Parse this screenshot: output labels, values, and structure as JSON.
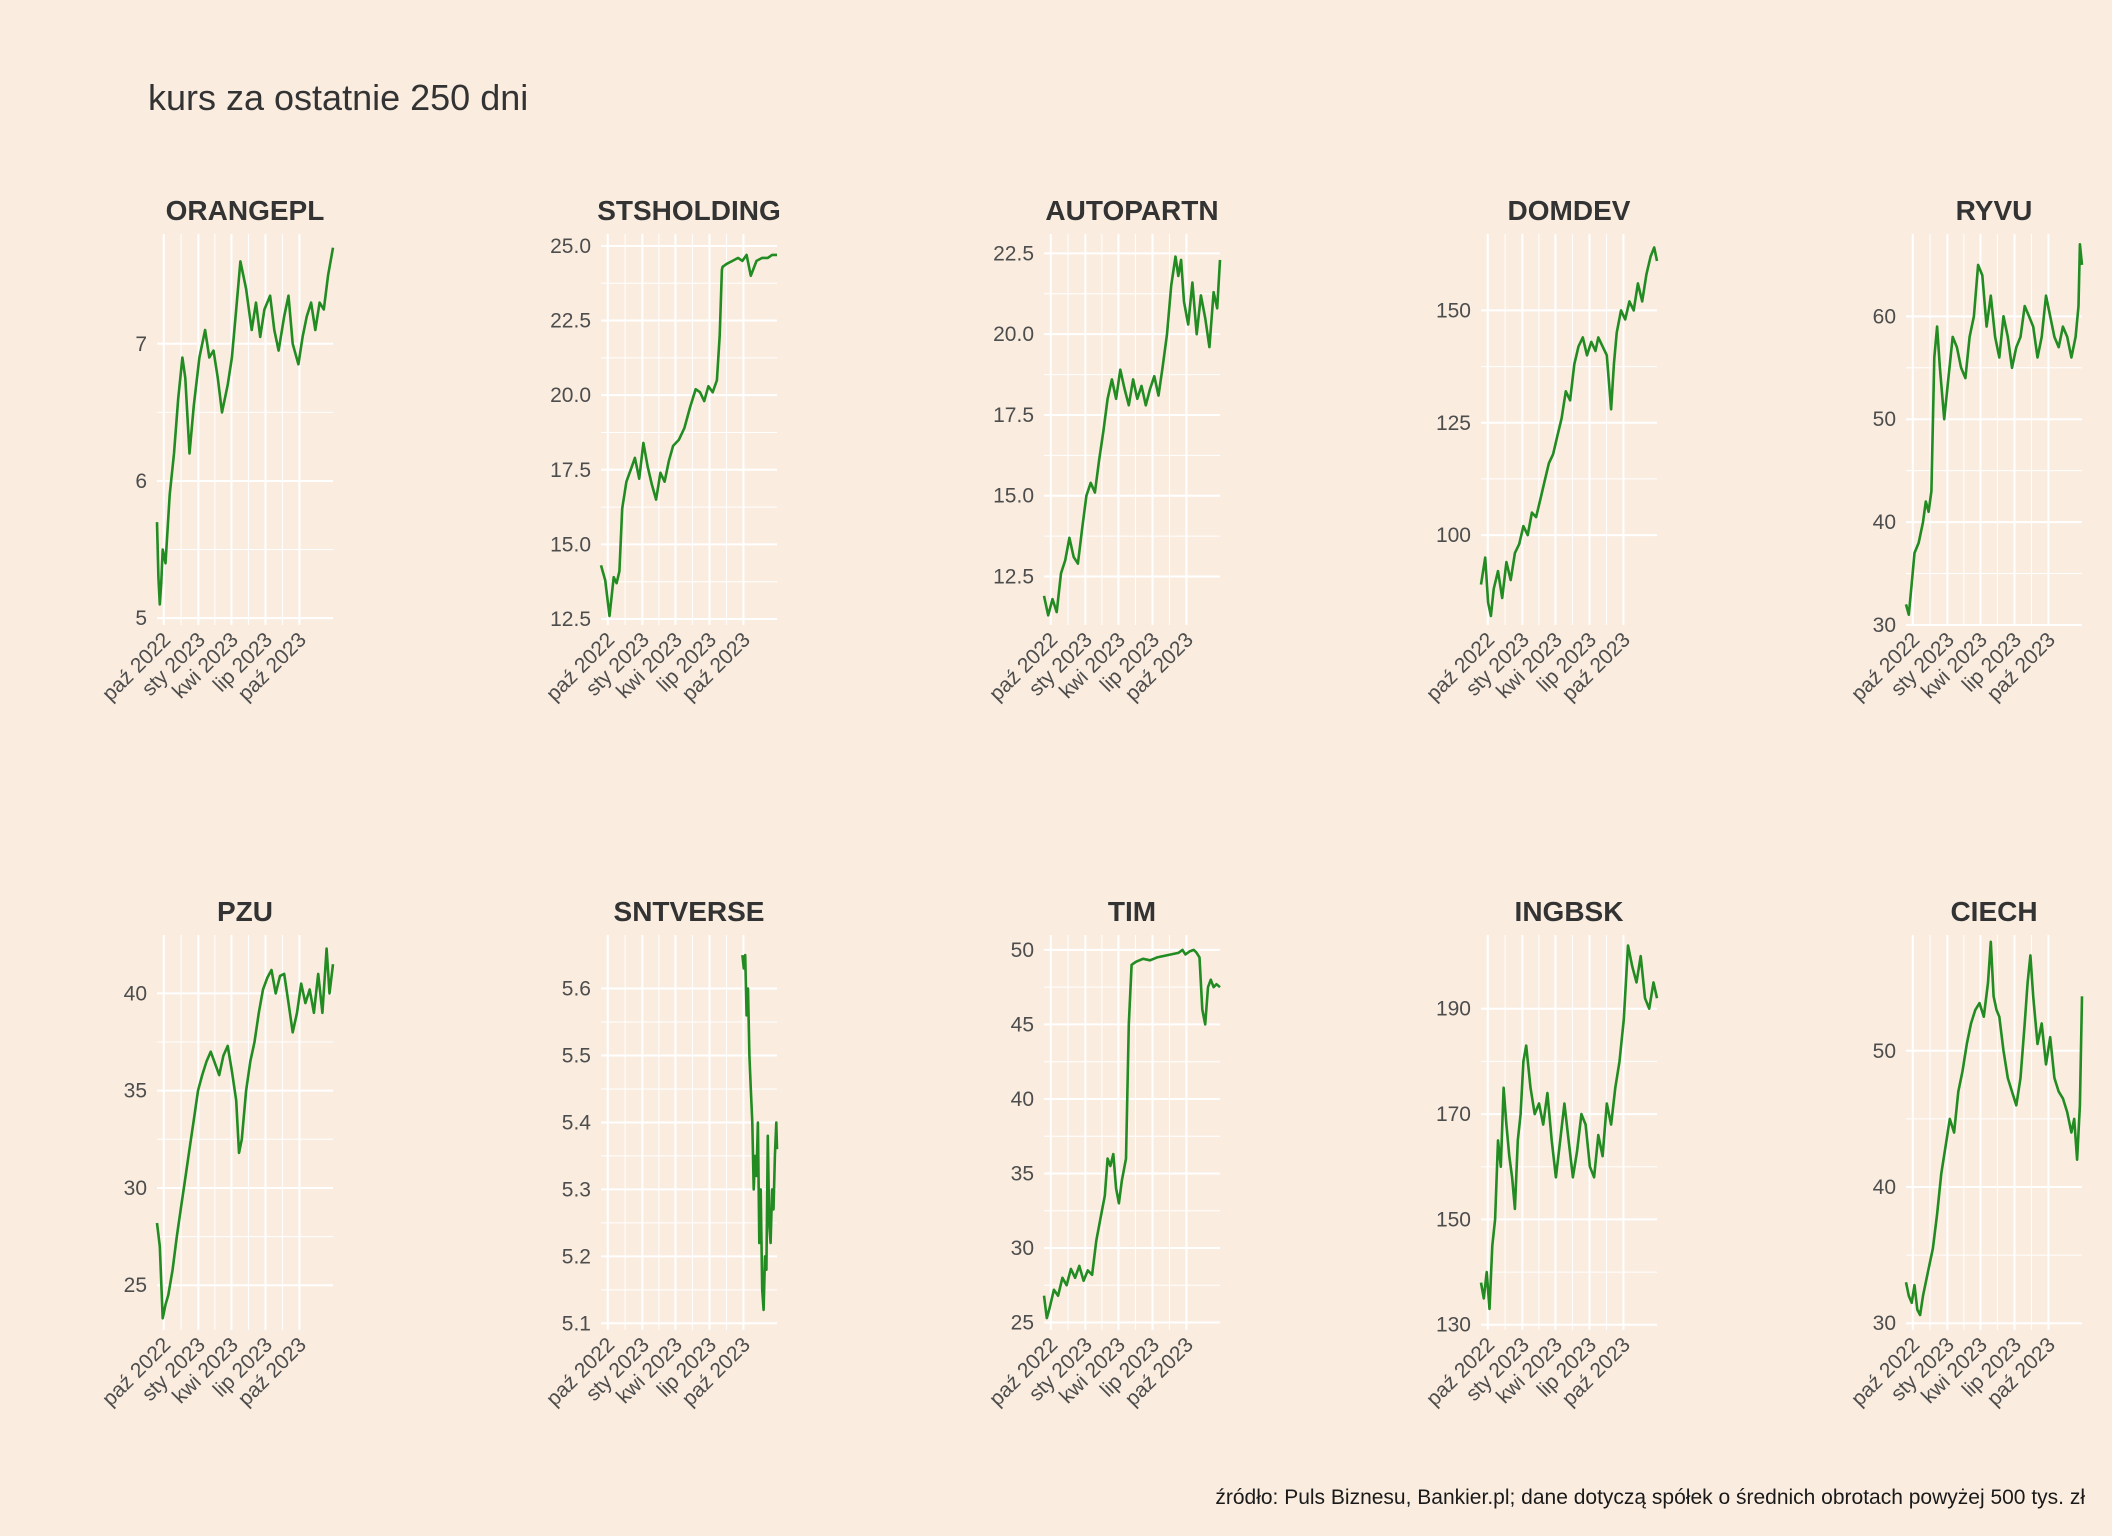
{
  "title": "kurs za ostatnie 250 dni",
  "caption": "źródło: Puls Biznesu, Bankier.pl; dane dotyczą spółek o średnich obrotach powyżej 500 tys. zł",
  "colors": {
    "background": "#FAEDE0",
    "line": "#228B22",
    "grid": "#FFFFFF"
  },
  "chart_data": [
    {
      "type": "line",
      "title": "ORANGEPL",
      "x_tick_labels": [
        "paź 2022",
        "sty 2023",
        "kwi 2023",
        "lip 2023",
        "paź 2023"
      ],
      "y_ticks": [
        5,
        6,
        7
      ],
      "y_tick_labels": [
        "5",
        "6",
        "7"
      ],
      "ylim": [
        4.95,
        7.8
      ],
      "x": [
        0,
        2,
        4,
        6,
        8,
        12,
        18,
        24,
        30,
        36,
        40,
        46,
        52,
        60,
        68,
        74,
        80,
        86,
        92,
        100,
        106,
        112,
        118,
        126,
        134,
        140,
        146,
        152,
        160,
        166,
        172,
        180,
        186,
        192,
        200,
        206,
        212,
        218,
        224,
        230,
        236,
        242,
        249
      ],
      "y": [
        5.7,
        5.3,
        5.1,
        5.25,
        5.5,
        5.4,
        5.9,
        6.2,
        6.6,
        6.9,
        6.75,
        6.2,
        6.55,
        6.9,
        7.1,
        6.9,
        6.95,
        6.75,
        6.5,
        6.7,
        6.9,
        7.25,
        7.6,
        7.4,
        7.1,
        7.3,
        7.05,
        7.25,
        7.35,
        7.1,
        6.95,
        7.2,
        7.35,
        7.0,
        6.85,
        7.05,
        7.2,
        7.3,
        7.1,
        7.3,
        7.25,
        7.5,
        7.7
      ]
    },
    {
      "type": "line",
      "title": "STSHOLDING",
      "x_tick_labels": [
        "paź 2022",
        "sty 2023",
        "kwi 2023",
        "lip 2023",
        "paź 2023"
      ],
      "y_ticks": [
        12.5,
        15,
        17.5,
        20,
        22.5,
        25
      ],
      "y_tick_labels": [
        "12.5",
        "15.0",
        "17.5",
        "20.0",
        "22.5",
        "25.0"
      ],
      "ylim": [
        12.3,
        25.4
      ],
      "x": [
        0,
        6,
        12,
        18,
        22,
        26,
        30,
        36,
        42,
        48,
        54,
        60,
        66,
        72,
        78,
        84,
        90,
        96,
        102,
        110,
        118,
        126,
        134,
        140,
        146,
        152,
        158,
        164,
        168,
        171,
        172,
        178,
        186,
        194,
        200,
        206,
        212,
        220,
        228,
        236,
        242,
        249
      ],
      "y": [
        14.3,
        13.8,
        12.6,
        13.9,
        13.7,
        14.1,
        16.2,
        17.1,
        17.5,
        17.9,
        17.2,
        18.4,
        17.6,
        17.0,
        16.5,
        17.4,
        17.1,
        17.8,
        18.3,
        18.5,
        18.9,
        19.6,
        20.2,
        20.1,
        19.8,
        20.3,
        20.1,
        20.5,
        22.0,
        24.2,
        24.3,
        24.4,
        24.5,
        24.6,
        24.5,
        24.7,
        24.0,
        24.5,
        24.6,
        24.6,
        24.7,
        24.7
      ]
    },
    {
      "type": "line",
      "title": "AUTOPARTN",
      "x_tick_labels": [
        "paź 2022",
        "sty 2023",
        "kwi 2023",
        "lip 2023",
        "paź 2023"
      ],
      "y_ticks": [
        12.5,
        15,
        17.5,
        20,
        22.5
      ],
      "y_tick_labels": [
        "12.5",
        "15.0",
        "17.5",
        "20.0",
        "22.5"
      ],
      "ylim": [
        11.0,
        23.1
      ],
      "x": [
        0,
        6,
        12,
        18,
        24,
        30,
        36,
        42,
        48,
        54,
        60,
        66,
        72,
        78,
        84,
        90,
        96,
        102,
        108,
        114,
        120,
        126,
        132,
        138,
        144,
        150,
        156,
        162,
        168,
        174,
        180,
        186,
        190,
        194,
        198,
        204,
        210,
        216,
        222,
        228,
        234,
        240,
        245,
        249
      ],
      "y": [
        11.9,
        11.3,
        11.8,
        11.4,
        12.6,
        13.0,
        13.7,
        13.1,
        12.9,
        14.0,
        15.0,
        15.4,
        15.1,
        16.1,
        17.0,
        18.0,
        18.6,
        18.0,
        18.9,
        18.3,
        17.8,
        18.6,
        18.0,
        18.4,
        17.8,
        18.3,
        18.7,
        18.1,
        19.0,
        20.0,
        21.5,
        22.4,
        21.8,
        22.3,
        21.0,
        20.3,
        21.6,
        20.0,
        21.2,
        20.5,
        19.6,
        21.3,
        20.8,
        22.3
      ]
    },
    {
      "type": "line",
      "title": "DOMDEV",
      "x_tick_labels": [
        "paź 2022",
        "sty 2023",
        "kwi 2023",
        "lip 2023",
        "paź 2023"
      ],
      "y_ticks": [
        100,
        125,
        150
      ],
      "y_tick_labels": [
        "100",
        "125",
        "150"
      ],
      "ylim": [
        80,
        167
      ],
      "x": [
        0,
        6,
        10,
        14,
        18,
        24,
        30,
        36,
        42,
        48,
        54,
        60,
        66,
        72,
        78,
        84,
        90,
        96,
        102,
        108,
        114,
        120,
        126,
        132,
        138,
        144,
        150,
        156,
        162,
        166,
        172,
        178,
        184,
        188,
        192,
        198,
        204,
        210,
        216,
        222,
        228,
        234,
        240,
        245,
        249
      ],
      "y": [
        89,
        95,
        85,
        82,
        88,
        92,
        86,
        94,
        90,
        96,
        98,
        102,
        100,
        105,
        104,
        108,
        112,
        116,
        118,
        122,
        126,
        132,
        130,
        138,
        142,
        144,
        140,
        143,
        141,
        144,
        142,
        140,
        128,
        138,
        145,
        150,
        148,
        152,
        150,
        156,
        152,
        158,
        162,
        164,
        161
      ]
    },
    {
      "type": "line",
      "title": "RYVU",
      "x_tick_labels": [
        "paź 2022",
        "sty 2023",
        "kwi 2023",
        "lip 2023",
        "paź 2023"
      ],
      "y_ticks": [
        30,
        40,
        50,
        60
      ],
      "y_tick_labels": [
        "30",
        "40",
        "50",
        "60"
      ],
      "ylim": [
        30,
        68
      ],
      "x": [
        0,
        4,
        8,
        12,
        18,
        24,
        28,
        32,
        36,
        40,
        44,
        48,
        54,
        60,
        66,
        72,
        78,
        84,
        90,
        96,
        102,
        108,
        114,
        120,
        126,
        132,
        138,
        144,
        150,
        156,
        162,
        168,
        174,
        180,
        186,
        192,
        198,
        204,
        210,
        216,
        222,
        228,
        234,
        240,
        244,
        246,
        249
      ],
      "y": [
        32,
        31,
        34,
        37,
        38,
        40,
        42,
        41,
        43,
        56,
        59,
        55,
        50,
        54,
        58,
        57,
        55,
        54,
        58,
        60,
        65,
        64,
        59,
        62,
        58,
        56,
        60,
        58,
        55,
        57,
        58,
        61,
        60,
        59,
        56,
        58,
        62,
        60,
        58,
        57,
        59,
        58,
        56,
        58,
        61,
        67,
        65
      ]
    },
    {
      "type": "line",
      "title": "PZU",
      "x_tick_labels": [
        "paź 2022",
        "sty 2023",
        "kwi 2023",
        "lip 2023",
        "paź 2023"
      ],
      "y_ticks": [
        25,
        30,
        35,
        40
      ],
      "y_tick_labels": [
        "25",
        "30",
        "35",
        "40"
      ],
      "ylim": [
        22.7,
        43.0
      ],
      "x": [
        0,
        4,
        8,
        12,
        16,
        22,
        28,
        34,
        40,
        46,
        52,
        58,
        64,
        70,
        76,
        82,
        88,
        94,
        100,
        106,
        112,
        116,
        120,
        126,
        132,
        138,
        144,
        150,
        156,
        162,
        168,
        174,
        180,
        186,
        192,
        198,
        204,
        210,
        216,
        222,
        228,
        234,
        240,
        244,
        249
      ],
      "y": [
        28.2,
        27.0,
        23.3,
        24.0,
        24.5,
        25.8,
        27.5,
        29.0,
        30.5,
        32.0,
        33.5,
        35.0,
        35.8,
        36.5,
        37.0,
        36.4,
        35.8,
        36.8,
        37.3,
        36.0,
        34.5,
        31.8,
        32.5,
        35.0,
        36.5,
        37.5,
        39.0,
        40.2,
        40.8,
        41.2,
        40.0,
        40.9,
        41.0,
        39.5,
        38.0,
        39.0,
        40.5,
        39.5,
        40.2,
        39.0,
        41.0,
        39.0,
        42.3,
        40.0,
        41.5
      ]
    },
    {
      "type": "line",
      "title": "SNTVERSE",
      "x_tick_labels": [
        "paź 2022",
        "sty 2023",
        "kwi 2023",
        "lip 2023",
        "paź 2023"
      ],
      "y_ticks": [
        5.1,
        5.2,
        5.3,
        5.4,
        5.5,
        5.6
      ],
      "y_tick_labels": [
        "5.1",
        "5.2",
        "5.3",
        "5.4",
        "5.5",
        "5.6"
      ],
      "ylim": [
        5.09,
        5.68
      ],
      "x": [
        200,
        202,
        204,
        206,
        208,
        210,
        212,
        214,
        216,
        218,
        220,
        222,
        224,
        226,
        228,
        230,
        232,
        234,
        236,
        238,
        240,
        242,
        244,
        246,
        248,
        249
      ],
      "y": [
        5.65,
        5.63,
        5.65,
        5.56,
        5.6,
        5.5,
        5.45,
        5.4,
        5.3,
        5.35,
        5.32,
        5.4,
        5.22,
        5.3,
        5.15,
        5.12,
        5.2,
        5.18,
        5.38,
        5.25,
        5.22,
        5.3,
        5.27,
        5.35,
        5.4,
        5.36
      ]
    },
    {
      "type": "line",
      "title": "TIM",
      "x_tick_labels": [
        "paź 2022",
        "sty 2023",
        "kwi 2023",
        "lip 2023",
        "paź 2023"
      ],
      "y_ticks": [
        25,
        30,
        35,
        40,
        45,
        50
      ],
      "y_tick_labels": [
        "25",
        "30",
        "35",
        "40",
        "45",
        "50"
      ],
      "ylim": [
        24.5,
        51.0
      ],
      "x": [
        0,
        4,
        8,
        14,
        20,
        26,
        32,
        38,
        44,
        50,
        56,
        62,
        68,
        74,
        80,
        86,
        90,
        94,
        98,
        102,
        106,
        110,
        116,
        120,
        124,
        130,
        140,
        150,
        160,
        170,
        180,
        190,
        196,
        200,
        206,
        212,
        216,
        220,
        224,
        228,
        232,
        236,
        240,
        244,
        249
      ],
      "y": [
        26.8,
        25.3,
        26.0,
        27.2,
        26.8,
        28.0,
        27.5,
        28.6,
        28.0,
        28.8,
        27.8,
        28.5,
        28.2,
        30.5,
        32.0,
        33.5,
        36.0,
        35.5,
        36.3,
        34.0,
        33.0,
        34.5,
        36.0,
        45.0,
        49.0,
        49.2,
        49.4,
        49.3,
        49.5,
        49.6,
        49.7,
        49.8,
        50.0,
        49.7,
        49.9,
        50.0,
        49.8,
        49.5,
        46.0,
        45.0,
        47.5,
        48.0,
        47.5,
        47.7,
        47.5
      ]
    },
    {
      "type": "line",
      "title": "INGBSK",
      "x_tick_labels": [
        "paź 2022",
        "sty 2023",
        "kwi 2023",
        "lip 2023",
        "paź 2023"
      ],
      "y_ticks": [
        130,
        150,
        170,
        190
      ],
      "y_tick_labels": [
        "130",
        "150",
        "170",
        "190"
      ],
      "ylim": [
        129,
        204
      ],
      "x": [
        0,
        4,
        8,
        12,
        16,
        20,
        24,
        28,
        32,
        36,
        40,
        44,
        48,
        52,
        56,
        60,
        64,
        70,
        76,
        82,
        88,
        94,
        100,
        106,
        112,
        118,
        124,
        130,
        136,
        142,
        148,
        154,
        160,
        166,
        172,
        178,
        184,
        190,
        196,
        202,
        208,
        214,
        220,
        226,
        232,
        238,
        244,
        249
      ],
      "y": [
        138,
        135,
        140,
        133,
        145,
        150,
        165,
        160,
        175,
        168,
        162,
        158,
        152,
        165,
        170,
        180,
        183,
        175,
        170,
        172,
        168,
        174,
        165,
        158,
        165,
        172,
        165,
        158,
        163,
        170,
        168,
        160,
        158,
        166,
        162,
        172,
        168,
        175,
        180,
        188,
        202,
        198,
        195,
        200,
        192,
        190,
        195,
        192
      ]
    },
    {
      "type": "line",
      "title": "CIECH",
      "x_tick_labels": [
        "paź 2022",
        "sty 2023",
        "kwi 2023",
        "lip 2023",
        "paź 2023"
      ],
      "y_ticks": [
        30,
        40,
        50
      ],
      "y_tick_labels": [
        "30",
        "40",
        "50"
      ],
      "ylim": [
        29.5,
        58.5
      ],
      "x": [
        0,
        4,
        8,
        12,
        16,
        20,
        24,
        28,
        32,
        38,
        44,
        50,
        56,
        62,
        68,
        74,
        80,
        86,
        92,
        98,
        104,
        110,
        116,
        120,
        124,
        128,
        132,
        138,
        144,
        150,
        156,
        162,
        168,
        172,
        176,
        180,
        186,
        192,
        198,
        204,
        210,
        216,
        222,
        228,
        234,
        238,
        242,
        246,
        249
      ],
      "y": [
        33.0,
        32.0,
        31.5,
        32.8,
        31.0,
        30.6,
        32.0,
        33.0,
        34.0,
        35.5,
        38.0,
        41.0,
        43.0,
        45.0,
        44.0,
        47.0,
        48.5,
        50.5,
        52.0,
        53.0,
        53.5,
        52.5,
        55.0,
        58.0,
        54.0,
        53.0,
        52.5,
        50.0,
        48.0,
        47.0,
        46.0,
        48.0,
        52.0,
        55.0,
        57.0,
        54.0,
        50.5,
        52.0,
        49.0,
        51.0,
        48.0,
        47.0,
        46.5,
        45.5,
        44.0,
        45.0,
        42.0,
        46.0,
        54.0
      ]
    }
  ]
}
